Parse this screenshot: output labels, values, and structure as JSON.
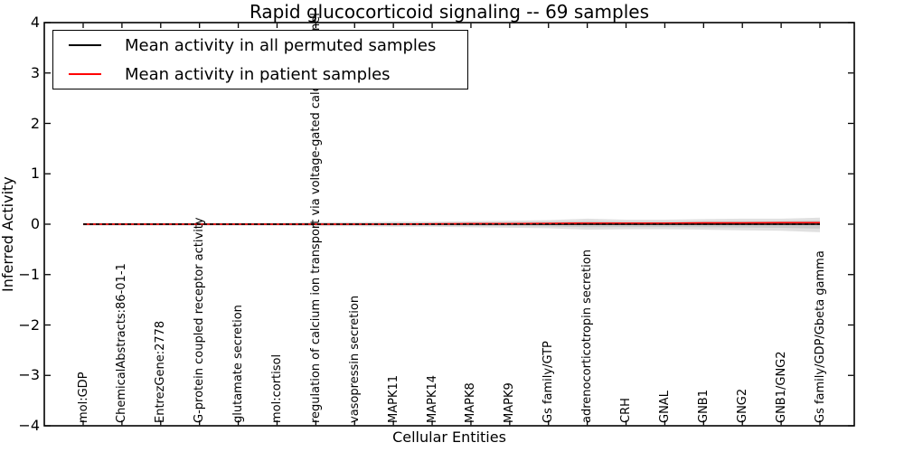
{
  "title": "Rapid glucocorticoid signaling -- 69 samples",
  "axes": {
    "xlabel": "Cellular Entities",
    "ylabel": "Inferred Activity"
  },
  "legend": {
    "items": [
      {
        "label": "Mean activity in all permuted samples",
        "color": "#000000"
      },
      {
        "label": "Mean activity in patient samples",
        "color": "#ff0000"
      }
    ]
  },
  "chart_data": {
    "type": "line",
    "title": "Rapid glucocorticoid signaling -- 69 samples",
    "xlabel": "Cellular Entities",
    "ylabel": "Inferred Activity",
    "ylim": [
      -4,
      4
    ],
    "yticks": [
      4,
      3,
      2,
      1,
      0,
      -1,
      -2,
      -3,
      -4
    ],
    "grid": false,
    "legend_position": "upper left",
    "categories": [
      "mol:GDP",
      "ChemicalAbstracts:86-01-1",
      "EntrezGene:2778",
      "G-protein coupled receptor activity",
      "glutamate secretion",
      "mol:cortisol",
      "regulation of calcium ion transport via voltage-gated calcium channel",
      "vasopressin secretion",
      "MAPK11",
      "MAPK14",
      "MAPK8",
      "MAPK9",
      "Gs family/GTP",
      "adrenocorticotropin secretion",
      "CRH",
      "GNAL",
      "GNB1",
      "GNG2",
      "GNB1/GNG2",
      "Gs family/GDP/Gbeta gamma"
    ],
    "series": [
      {
        "name": "Mean activity in all permuted samples",
        "color": "#000000",
        "style": "solid",
        "values": [
          0,
          0,
          0,
          0,
          0,
          0,
          0,
          0,
          0,
          0,
          0,
          0,
          0,
          0,
          0,
          0,
          0,
          0,
          0,
          0
        ]
      },
      {
        "name": "Mean activity in patient samples",
        "color": "#ff0000",
        "style": "solid",
        "values": [
          0,
          0,
          0,
          0,
          0,
          0,
          0,
          0,
          0,
          0.005,
          0.01,
          0.01,
          0.015,
          0.02,
          0.02,
          0.02,
          0.025,
          0.025,
          0.03,
          0.03
        ]
      },
      {
        "name": "zero reference line",
        "color": "#000000",
        "style": "dashed",
        "values": [
          0,
          0,
          0,
          0,
          0,
          0,
          0,
          0,
          0,
          0,
          0,
          0,
          0,
          0,
          0,
          0,
          0,
          0,
          0,
          0
        ]
      }
    ],
    "band": {
      "name": "spread of permuted sample activity",
      "color": "#d9d9d9",
      "upper": [
        0.03,
        0.03,
        0.03,
        0.03,
        0.03,
        0.03,
        0.04,
        0.04,
        0.05,
        0.05,
        0.06,
        0.07,
        0.08,
        0.11,
        0.09,
        0.09,
        0.1,
        0.11,
        0.11,
        0.13
      ],
      "lower": [
        -0.03,
        -0.03,
        -0.03,
        -0.03,
        -0.03,
        -0.03,
        -0.04,
        -0.04,
        -0.05,
        -0.05,
        -0.06,
        -0.07,
        -0.08,
        -0.11,
        -0.1,
        -0.1,
        -0.11,
        -0.12,
        -0.13,
        -0.16
      ]
    }
  }
}
